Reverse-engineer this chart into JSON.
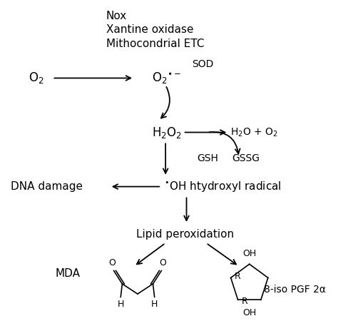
{
  "bg_color": "#ffffff",
  "text_color": "#000000",
  "figsize": [
    4.74,
    4.57
  ],
  "dpi": 100,
  "labels": {
    "nox_text": "Nox\nXantine oxidase\nMithocondrial ETC",
    "O2": "O$_2$",
    "O2_radical": "O$_2$$^{\\bullet-}$",
    "SOD": "SOD",
    "H2O2": "H$_2$O$_2$",
    "H2O_O2": "H$_2$O + O$_2$",
    "GSH": "GSH",
    "GSSG": "GSSG",
    "OH_radical": "$^{\\bullet}$OH htydroxyl radical",
    "DNA_damage": "DNA damage",
    "lipid_perox": "Lipid peroxidation",
    "MDA": "MDA",
    "iso_pgf": "8-iso PGF 2α"
  }
}
